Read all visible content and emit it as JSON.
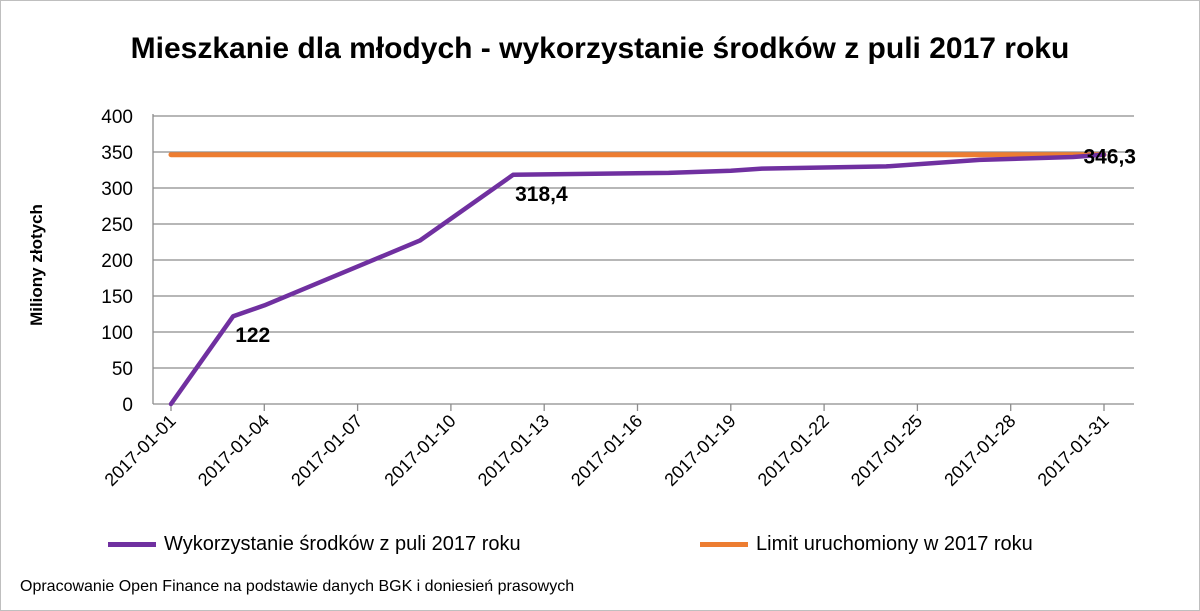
{
  "colors": {
    "usage": "#7030a0",
    "limit": "#ed7d31",
    "grid": "#8c8c8c"
  },
  "chart_data": {
    "type": "line",
    "title": "Mieszkanie dla młodych - wykorzystanie środków z puli 2017 roku",
    "ylabel": "Miliony złotych",
    "ylim": [
      0,
      400
    ],
    "yticks": [
      "0",
      "50",
      "100",
      "150",
      "200",
      "250",
      "300",
      "350",
      "400"
    ],
    "xlim": [
      "2017-01-01",
      "2017-01-31"
    ],
    "xticks": [
      "2017-01-01",
      "2017-01-04",
      "2017-01-07",
      "2017-01-10",
      "2017-01-13",
      "2017-01-16",
      "2017-01-19",
      "2017-01-22",
      "2017-01-25",
      "2017-01-28",
      "2017-01-31"
    ],
    "series": [
      {
        "name": "Wykorzystanie środków z puli 2017 roku",
        "points": [
          [
            "2017-01-01",
            0
          ],
          [
            "2017-01-03",
            122
          ],
          [
            "2017-01-04",
            137
          ],
          [
            "2017-01-09",
            227
          ],
          [
            "2017-01-12",
            318.4
          ],
          [
            "2017-01-17",
            321
          ],
          [
            "2017-01-19",
            324
          ],
          [
            "2017-01-20",
            327
          ],
          [
            "2017-01-24",
            330
          ],
          [
            "2017-01-27",
            339
          ],
          [
            "2017-01-30",
            343
          ],
          [
            "2017-01-31",
            346.3
          ]
        ],
        "labels": [
          {
            "x": "2017-01-03",
            "y": 122,
            "text": "122"
          },
          {
            "x": "2017-01-12",
            "y": 318.4,
            "text": "318,4"
          },
          {
            "x": "2017-01-31",
            "y": 346.3,
            "text": "346,3"
          }
        ]
      },
      {
        "name": "Limit uruchomiony w 2017 roku",
        "points": [
          [
            "2017-01-01",
            346.3
          ],
          [
            "2017-01-31",
            346.3
          ]
        ]
      }
    ],
    "grid": true,
    "legend": "bottom",
    "source": "Opracowanie Open Finance  na podstawie danych BGK i doniesień prasowych"
  }
}
